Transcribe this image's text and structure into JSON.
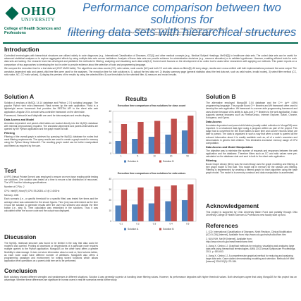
{
  "header": {
    "logo_name": "OHIO",
    "logo_sub": "UNIVERSITY",
    "college": "College of Health Sciences and Professions",
    "title_lines": [
      "Performance comparison between two solutions for",
      "filtering data sets with hierarchical structures"
    ],
    "authors": "Matthew Lamb¹, Daniel Dell¹², James J. Chen³, Chang Liu¹, Brian Phillips¹ and Xiaomei Ji¹ Xu Liu¹²",
    "affiliations": "1. Ohio University School of Engineering and Technology, 2. Scripps College of Communication, 3. College of Health Sciences and Professions, Ohio University, Athens, OH. 4. Informatics Institute, School of Medicine, University of Alabama, Birmingham, Alabama, 5. College of Osteopathic Medicine, Ohio University, Athens, California"
  },
  "intro": {
    "heading": "Introduction",
    "paragraphs": [
      "Controlled terminologies with hierarchical structures are utilized widely to code diagnoses (e.g., International Classification of Diseases, ICD[1]) and other medical concepts (e.g., Medical Subject Headings, MeSH[2]) in healthcare data sets. The coded data sets can be useful for advanced statistical analyses or to explore aggregated effects by using multiple data sets across institutions. Analysis of these data sets can provide evidence for administrative decisions (e.g., resource allocation) or to validate hypotheses. However, enabling efficient tools for such data sets are lacking. Our research team has developed and published the methods for filtering, analyzing and visualizing such data sets[3,4]. Current work focuses on the development of an online tool to assist other researchers with applying our methods. This poster reports on a comparison of two approaches to developing the tool in order to provide evidence about the selection of tools and programming language.",
      "We compare the execution time for a test data set (2017 MeSH table). The algorithms use class counts (CC), ratio values, node counts (NC) and both CC and ratio values as filters[3]. All every stage, results were cross-verified until both implementations produced the same output. The annotator-dependent ratio and parent-child tree files were used for the analyses. The execution time for both solutions is: 1) upload the test data set, 2) display summary page (general statistics about the test data set, such as valid nodes, invalid nodes), 3) select filter method (CC, ratio value, NC, CC+ratio values), 4) display the preview of the results by using the selected filter, 5) use thresholds for the selected filter, 6) measure and record results."
    ]
  },
  "solution_a": {
    "heading": "Solution A",
    "paragraphs": [
      "Solution A employs a MySQL 14.14 database and Python 2.7.6 scripting language. The popular Python web micro-framework Flask serves up the web application. Flask is a lightweight server framework that provides the RESTful API to the client side web application. Angular JS is a model-view-controller framework on the client side.",
      "Framework, NetworkX and Matplotlib are used for data analysis and results display."
    ],
    "subsections": [
      {
        "heading": "Data Access and Model",
        "text": "Annotator-dependent and parent-child tables are loaded directly into the MySQL database with minimal preprocessing required. The annotator-dependent and parent-child tables are queried by the Python application and the graph model is built."
      },
      {
        "heading": "Filtering",
        "text": "Filtering of the overall graph is achieved by querying the MySQL database for nodes that meet filtering requirements. The query results are used to create a graph model in memory using the Python library NetworkX. The resulting graph model can be further manipulated and filtered as required by the user."
      }
    ]
  },
  "test": {
    "heading": "Test",
    "paragraphs": [
      "A VPS (Virtual Private Server) was employed to ensure an even base reading while testing our solutions. One solution was tested at a time to ensure a fair distribution of resources. The VPS had the following specifications:",
      "Number of CPUs: 2",
      "CPU: Intel(R) Xeon(R) CPU E5-2630L v2 @ 2.40GHz",
      "Memory: 4GB",
      "Each scenario (i.e., a specific threshold for a specific filter) was tested five times and the average value was calculated for the shown figures. Time (ms) was determined as the time it took the solution to generate results after the user had selected and clicked the filter button (i.e., step 5). Time calculation was embedded in the solutions. Thus it was calculated within the source code and the output was displayed."
    ]
  },
  "results": {
    "heading": "Results",
    "figures": [
      {
        "title": "Execution time comparison of two solutions for class count",
        "categories": [
          "1",
          "5",
          "10",
          "20",
          "50"
        ],
        "ylim": [
          0,
          40
        ],
        "yticks": [
          0,
          10,
          20,
          30,
          40
        ],
        "series": [
          {
            "name": "Solution A",
            "color": "#4f81bd",
            "values": [
              12,
              14,
              16,
              18,
              22
            ]
          },
          {
            "name": "Solution B",
            "color": "#c0504d",
            "values": [
              28,
              30,
              31,
              33,
              36
            ]
          }
        ]
      },
      {
        "title": "Execution time comparison of two solutions for ratio values",
        "categories": [
          "0.1",
          "0.2",
          "0.3",
          "0.4",
          "0.5"
        ],
        "ylim": [
          0,
          40
        ],
        "yticks": [
          0,
          10,
          20,
          30,
          40
        ],
        "series": [
          {
            "name": "Solution A",
            "color": "#4f81bd",
            "values": [
              15,
              16,
              17,
              19,
              20
            ]
          },
          {
            "name": "Solution B",
            "color": "#c0504d",
            "values": [
              30,
              32,
              33,
              34,
              35
            ]
          }
        ]
      }
    ]
  },
  "solution_b": {
    "heading": "Solution B",
    "paragraphs": [
      "The alternative employed MongoDB 3.04 database and the C++ (g++ 4.8%) programming language. The popular Boost C++ libraries and Wt framework were used to develop the web application. Wt framework is a server-side programming framework and uses chosen because of its ability to auto-port C++ libraries to the web application. It also supports several browsers such as Firefox/Gecko, Internet Explorer, Safari, Chrome, Konqueror, and Opera."
    ],
    "subsections": [
      {
        "heading": "Data Access",
        "text": "Annotator-dependent and parent-child tables (usually called collection in MongoDB) were imported. In a structured data type using a program written as part of the project. This stage has to converted the MS Excel tables to save time and convert records which are later to parsed. The data is organized in such a way that when a node is queried all the relevant information about it is readily available such as, all of a node's ancestors and descendants in generic text children. This eliminates excessive memory usage of CPU computation."
      },
      {
        "heading": "Data Access and Model Manipulation",
        "text": "The objective was to minimize the number of requests and responses between the web application and the database. Therefore filters such as CC and ratio values were pre-calculated on the database side and sent in bulk to the client web application."
      },
      {
        "heading": "Filtering",
        "text": "Boost Graph Library (BGL) was the main library used for graph modeling and filtering. A tree graph model is first built. This model will in memory for the session and filtering. Filtering is implemented by creating a filtered graph for each algorithm using the base graph model. The model is in-memory construct and data manipulation is accelerated."
      }
    ]
  },
  "discussion": {
    "heading": "Discussion",
    "text": "The MySQL relational structure was found to be limited in the way that data could be modeled and queried. Probing all ancestors or descendants of a particular node requires multiple queries to the Python application. MongoDB on the other hand offers a greater flexibility in data storage. It does not store information about a node or, fixed column tables, as each node could have different number of attributes. MongoDB also offers a programming paradigm and environment for writing stored functions which allows application level operations on a parent-child tree set to be performed."
  },
  "acknowledgement": {
    "heading": "Acknowledgement",
    "text": "This project is supported by Ohio University Baker Fund and partially through Ohio University College of Health Sciences & Professions new faculty start up fund."
  },
  "references": {
    "heading": "References",
    "items": [
      "1. ICD: International Classification of Diseases, Ninth Revision, Clinical Modification (ICD-9-CM) [Internet]. Available from: http://www.cdc.gov/nchs/icd/icd9cm.htm",
      "2. NLM NIH. MeSH [Internet]. Available from: http://www.nlm.nih.gov/mesh/meshhome.html",
      "3. Jiang X, Cimino JJ. Graphical methods for reducing, visualizing and analyzing large data sets using hierarchical terminologies. AMIA 2011 Annual Symposium Proceedings. 2011. p. 635-643.",
      "4. Jiang X, Cimino JJ. A comprehensive graphical method for reducing and analyzing large data sets. Case studies demonstrating modeling and selection. Methods Inf Med [Internet] 2016 53(3):175-186."
    ]
  },
  "conclusion": {
    "heading": "Conclusion",
    "text": "Both solutions showed different strengths and weaknesses in different situations. Solution A was generally superior at handling lower filtering values. However, its performance degrades with higher threshold values. Both developers agree that using MongoDB for this project has an advantage. Whether these differences are significant in human users in real life scenarios needs further study."
  }
}
